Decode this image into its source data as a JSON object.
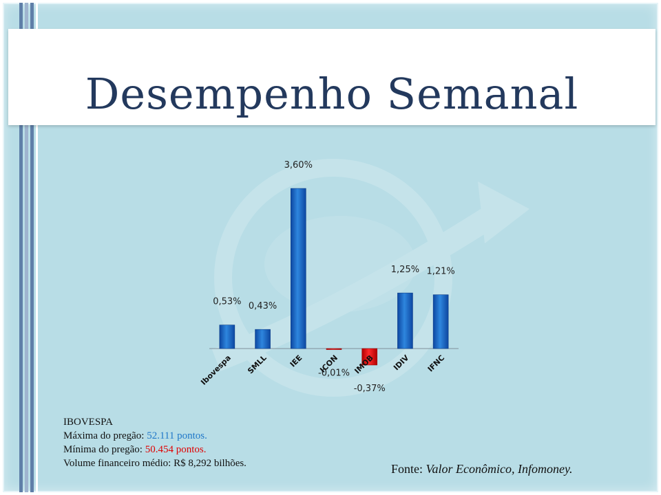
{
  "title": "Desempenho Semanal",
  "chart_data": {
    "type": "bar",
    "categories": [
      "Ibovespa",
      "SMLL",
      "IEE",
      "ICON",
      "IMOB",
      "IDIV",
      "IFNC"
    ],
    "values": [
      0.53,
      0.43,
      3.6,
      -0.01,
      -0.37,
      1.25,
      1.21
    ],
    "data_labels": [
      "0,53%",
      "0,43%",
      "3,60%",
      "-0,01%",
      "-0,37%",
      "1,25%",
      "1,21%"
    ],
    "colors": {
      "positive": "#1565c0",
      "negative": "#e00000"
    },
    "grid": false,
    "legend": "none"
  },
  "info": {
    "heading": "IBOVESPA",
    "max_label": "Máxima  do pregão: ",
    "max_value": "52.111  pontos.",
    "min_label": "Mínima  do pregão: ",
    "min_value": "50.454  pontos.",
    "volume": "Volume  financeiro  médio: R$ 8,292 bilhões."
  },
  "source": {
    "label": "Fonte: ",
    "text": "Valor Econômico, Infomoney."
  },
  "colors": {
    "background": "#b8dde6",
    "title": "#23395d",
    "max_value": "#1f77c8",
    "min_value": "#e00000"
  }
}
